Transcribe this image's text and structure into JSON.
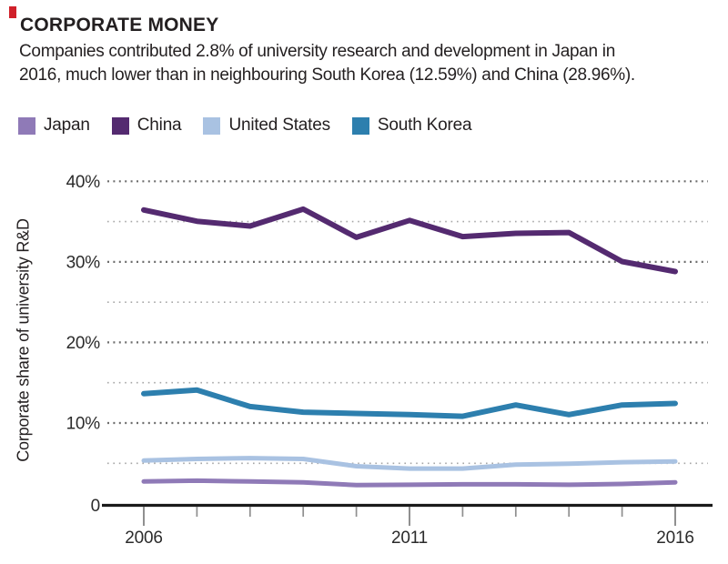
{
  "header": {
    "kicker_mark_color": "#d0202a"
  },
  "chart_data": {
    "type": "line",
    "title": "CORPORATE MONEY",
    "subtitle": "Companies contributed 2.8% of university research and development in Japan in 2016, much lower than in neighbouring South Korea (12.59%) and China (28.96%).",
    "subtitle_lines": [
      "Companies contributed 2.8% of university research and development in Japan in",
      "2016, much lower than in neighbouring South Korea (12.59%) and China (28.96%).",
      ""
    ],
    "ylabel": "Corporate share of university R&D",
    "xlabel": "",
    "x": [
      2006,
      2007,
      2008,
      2009,
      2010,
      2011,
      2012,
      2013,
      2014,
      2015,
      2016
    ],
    "series": [
      {
        "name": "Japan",
        "color": "#8f7ab7",
        "values": [
          2.9,
          3.0,
          2.9,
          2.8,
          2.45,
          2.5,
          2.55,
          2.55,
          2.5,
          2.6,
          2.8
        ]
      },
      {
        "name": "China",
        "color": "#542a70",
        "values": [
          36.6,
          35.2,
          34.6,
          36.7,
          33.2,
          35.3,
          33.3,
          33.7,
          33.8,
          30.2,
          28.96
        ]
      },
      {
        "name": "United States",
        "color": "#a9c2e2",
        "values": [
          5.5,
          5.7,
          5.8,
          5.7,
          4.8,
          4.5,
          4.5,
          5.0,
          5.1,
          5.3,
          5.4
        ]
      },
      {
        "name": "South Korea",
        "color": "#2d7fae",
        "values": [
          13.8,
          14.25,
          12.2,
          11.5,
          11.35,
          11.2,
          11.0,
          12.4,
          11.2,
          12.4,
          12.59
        ]
      }
    ],
    "ylim": [
      0,
      40
    ],
    "y_tick_labels": [
      "40%",
      "30%",
      "20%",
      "10%",
      "0"
    ],
    "y_major_ticks_pct": [
      40,
      30,
      20,
      10
    ],
    "y_minor_ticks_pct": [
      35,
      25,
      15,
      5
    ],
    "x_tick_labels": [
      "2006",
      "2011",
      "2016"
    ],
    "grid": "dotted horizontal lines, darker at 10% multiples, lighter at 5% multiples",
    "legend_position": "top-left above plot"
  }
}
